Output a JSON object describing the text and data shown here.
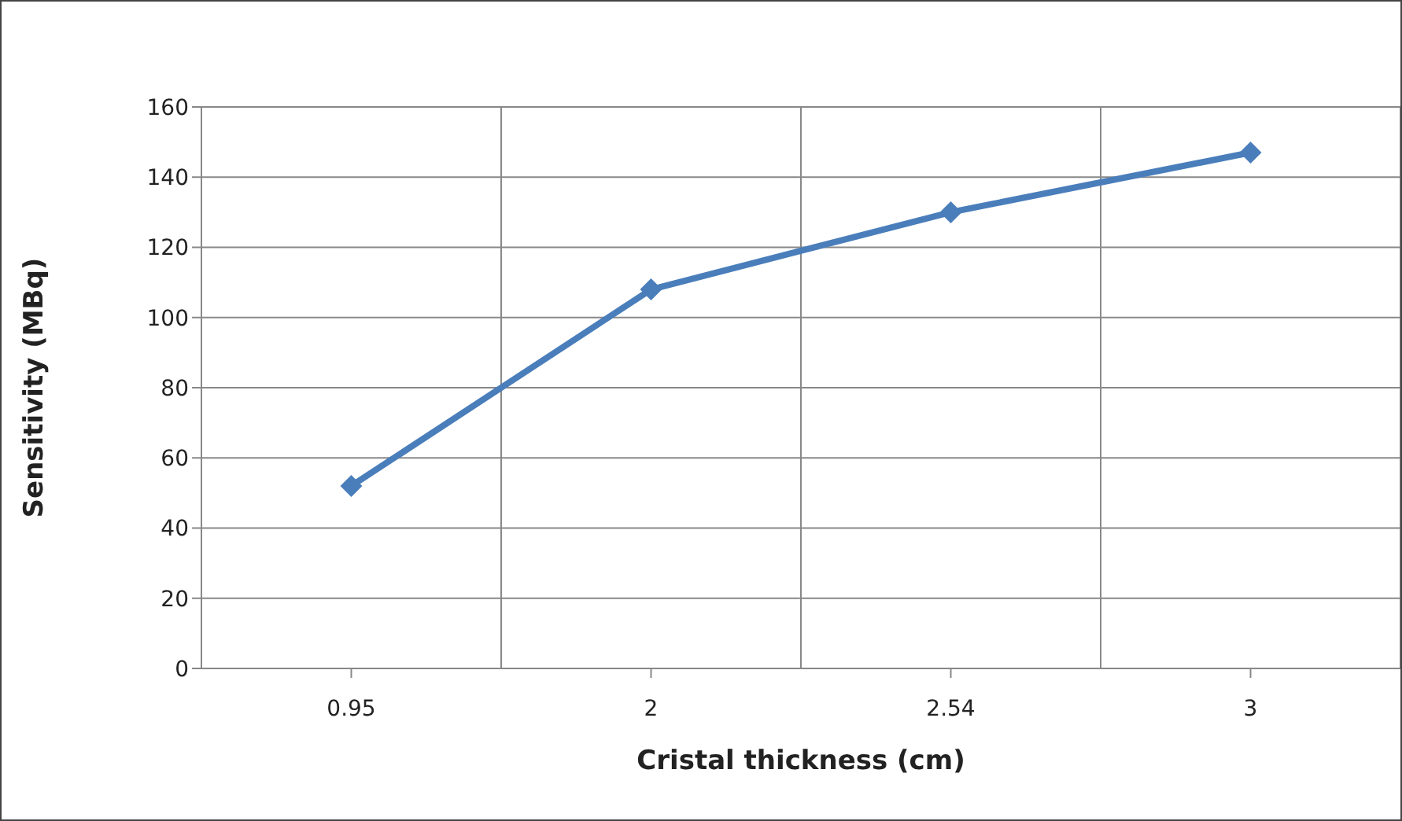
{
  "chart_data": {
    "type": "line",
    "xlabel": "Cristal thickness (cm)",
    "ylabel": "Sensitivity (MBq)",
    "categories": [
      "0.95",
      "2",
      "2.54",
      "3"
    ],
    "series": [
      {
        "color": "#4a7ebb",
        "values": [
          52,
          108,
          130,
          147
        ]
      }
    ],
    "ylim": [
      0,
      160
    ],
    "yticks": [
      0,
      20,
      40,
      60,
      80,
      100,
      120,
      140,
      160
    ],
    "grid": true,
    "legend": false,
    "marker": "diamond",
    "line_style": "solid"
  }
}
